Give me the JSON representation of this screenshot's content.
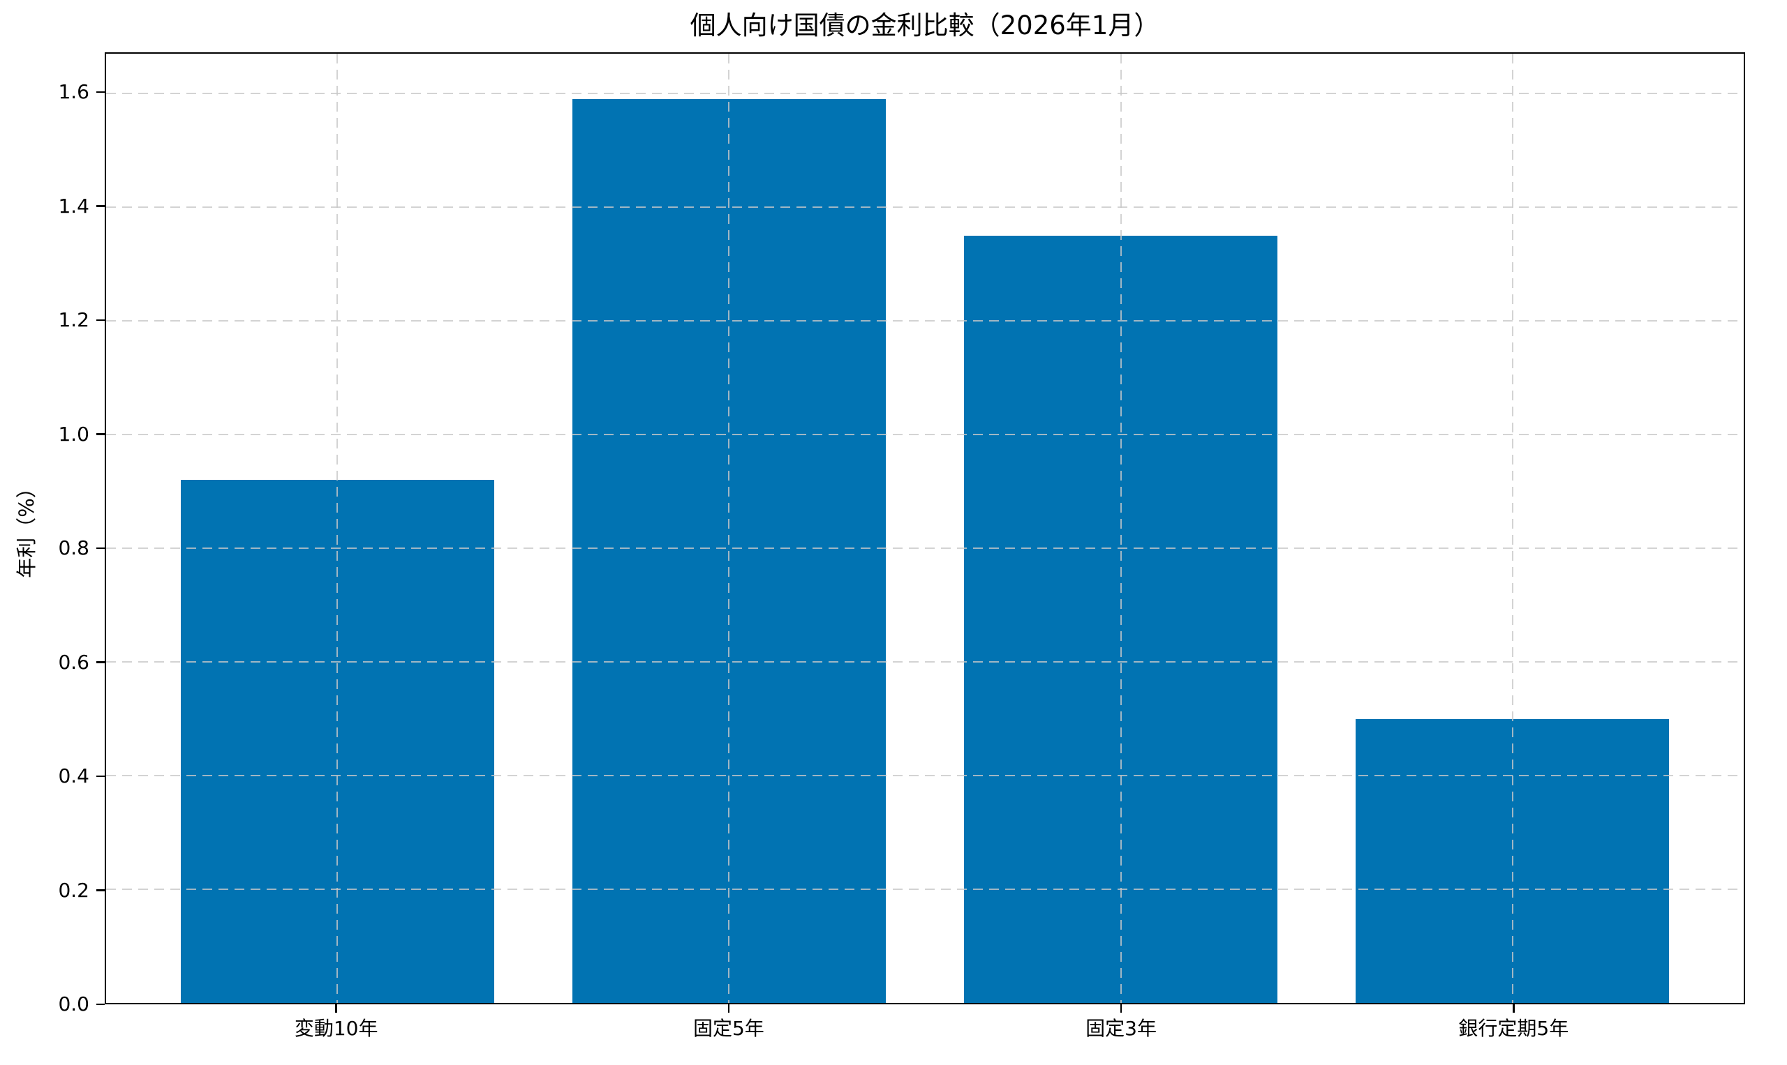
{
  "chart_data": {
    "type": "bar",
    "title": "個人向け国債の金利比較（2026年1月）",
    "xlabel": "",
    "ylabel": "年利（%）",
    "categories": [
      "変動10年",
      "固定5年",
      "固定3年",
      "銀行定期5年"
    ],
    "values": [
      0.92,
      1.59,
      1.35,
      0.5
    ],
    "yticks": [
      0.0,
      0.2,
      0.4,
      0.6,
      0.8,
      1.0,
      1.2,
      1.4,
      1.6
    ],
    "ytick_labels": [
      "0.0",
      "0.2",
      "0.4",
      "0.6",
      "0.8",
      "1.0",
      "1.2",
      "1.4",
      "1.6"
    ],
    "ylim": [
      0,
      1.67
    ],
    "xlim": [
      -0.59,
      3.59
    ],
    "bar_width": 0.8,
    "bar_color": "#0173b2",
    "grid": true,
    "grid_style": "dashed",
    "grid_color": "rgba(200,200,200,0.8)",
    "spine_color": "#000000",
    "background_color": "#ffffff",
    "legend": "none"
  }
}
